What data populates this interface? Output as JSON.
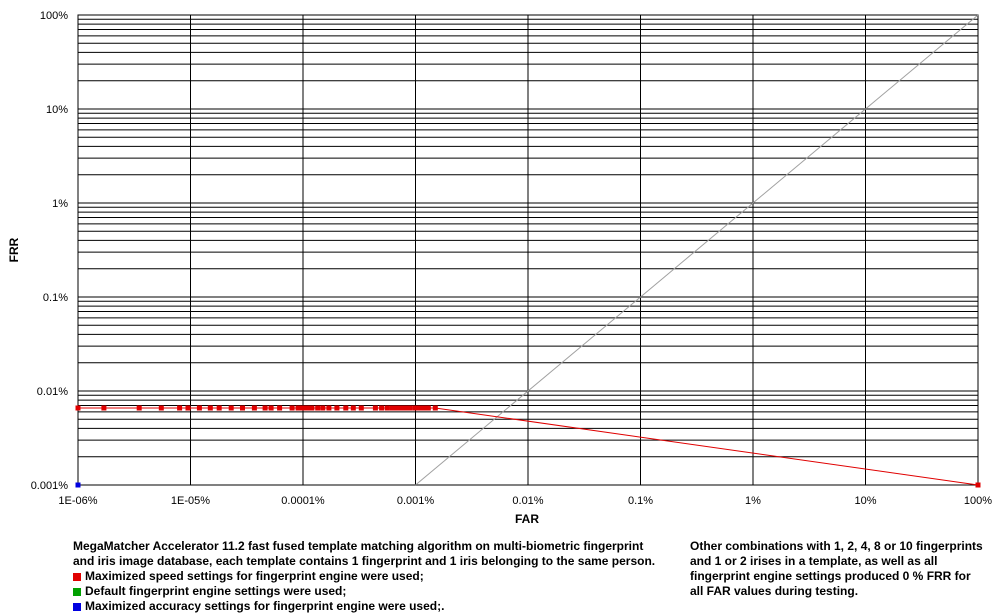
{
  "chart_data": {
    "type": "line",
    "xlabel": "FAR",
    "ylabel": "FRR",
    "x_scale": "log",
    "y_scale": "log",
    "x_ticks": [
      "1E-06%",
      "1E-05%",
      "0.0001%",
      "0.001%",
      "0.01%",
      "0.1%",
      "1%",
      "10%",
      "100%"
    ],
    "y_ticks": [
      "0.001%",
      "0.01%",
      "0.1%",
      "1%",
      "10%",
      "100%"
    ],
    "xlim": [
      1e-06,
      100
    ],
    "ylim": [
      0.001,
      100
    ],
    "grid": true,
    "reference_line": {
      "x": [
        0.001,
        100
      ],
      "y": [
        0.001,
        100
      ],
      "color": "#a0a0a0"
    },
    "series": [
      {
        "name": "Maximized speed settings for fingerprint engine were used;",
        "color": "#e00000",
        "x": [
          1e-06,
          1.7e-06,
          3.5e-06,
          5.5e-06,
          8e-06,
          9.5e-06,
          1.2e-05,
          1.5e-05,
          1.8e-05,
          2.3e-05,
          2.9e-05,
          3.7e-05,
          4.6e-05,
          5.2e-05,
          6.2e-05,
          8e-05,
          9.05e-05,
          0.0001,
          0.00011,
          0.00012,
          0.000135,
          0.00015,
          0.00017,
          0.0002,
          0.00024,
          0.00028,
          0.00033,
          0.00044,
          0.0005,
          0.00056,
          0.00062,
          0.00068,
          0.00075,
          0.00082,
          0.0009,
          0.001,
          0.00108,
          0.00115,
          0.00122,
          0.0013,
          0.0015,
          100
        ],
        "y": [
          0.0066,
          0.0066,
          0.0066,
          0.0066,
          0.0066,
          0.0066,
          0.0066,
          0.0066,
          0.0066,
          0.0066,
          0.0066,
          0.0066,
          0.0066,
          0.0066,
          0.0066,
          0.0066,
          0.0066,
          0.0066,
          0.0066,
          0.0066,
          0.0066,
          0.0066,
          0.0066,
          0.0066,
          0.0066,
          0.0066,
          0.0066,
          0.0066,
          0.0066,
          0.0066,
          0.0066,
          0.0066,
          0.0066,
          0.0066,
          0.0066,
          0.0066,
          0.0066,
          0.0066,
          0.0066,
          0.0066,
          0.0066,
          0.001
        ]
      },
      {
        "name": "Default fingerprint engine settings were used;",
        "color": "#00a000",
        "x": [],
        "y": []
      },
      {
        "name": "Maximized accuracy settings for fingerprint engine were used;.",
        "color": "#0000e0",
        "x": [
          1e-06
        ],
        "y": [
          0.001
        ]
      }
    ]
  },
  "caption": {
    "left_lines": [
      "MegaMatcher Accelerator 11.2 fast fused template matching algorithm on multi-biometric fingerprint",
      "and iris image database, each template contains 1 fingerprint and 1 iris belonging to the same person."
    ],
    "right_lines": [
      "Other combinations with 1, 2, 4, 8 or 10 fingerprints",
      "and 1 or 2 irises in a template, as well as all",
      "fingerprint engine settings produced 0 % FRR for",
      "all FAR values during testing."
    ]
  }
}
